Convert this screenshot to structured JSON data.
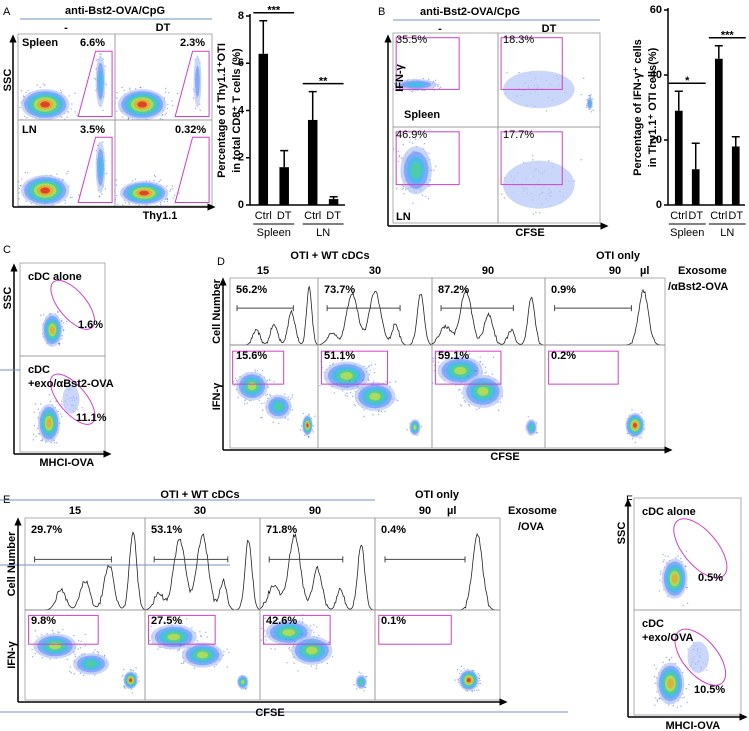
{
  "chart_data": [
    {
      "type": "bar",
      "ylabel": [
        "Percentage of Thy1.1⁺OTI",
        "in total CD8⁺ T cells (%)"
      ],
      "categories": [
        "Ctrl",
        "DT",
        "Ctrl",
        "DT"
      ],
      "groups": [
        "Spleen",
        "LN"
      ],
      "values": [
        6.4,
        1.6,
        3.6,
        0.25
      ],
      "errors": [
        1.4,
        0.7,
        1.2,
        0.1
      ],
      "color": "#000000",
      "ylim": [
        0,
        8
      ],
      "yticks": [
        0,
        2,
        4,
        6,
        8
      ],
      "significance": [
        "***",
        "**"
      ]
    },
    {
      "type": "bar",
      "ylabel": [
        "Percentage of IFN-γ⁺ cells",
        "in Thy1.1⁺ OTI cells(%)"
      ],
      "categories": [
        "Ctrl",
        "DT",
        "Ctrl",
        "DT"
      ],
      "groups": [
        "Spleen",
        "LN"
      ],
      "values": [
        29,
        11,
        45,
        18
      ],
      "errors": [
        6,
        8,
        4,
        3
      ],
      "color": "#000000",
      "ylim": [
        0,
        60
      ],
      "yticks": [
        0,
        20,
        40,
        60
      ],
      "significance": [
        "*",
        "***"
      ]
    }
  ],
  "panels": {
    "A": {
      "letter": "A",
      "title": "anti-Bst2-OVA/CpG",
      "columns": [
        "-",
        "DT"
      ],
      "rows": [
        "Spleen",
        "LN"
      ],
      "y_axis": "SSC",
      "x_axis": "Thy1.1",
      "gates": [
        "6.6%",
        "2.3%",
        "3.5%",
        "0.32%"
      ]
    },
    "B": {
      "letter": "B",
      "title": "anti-Bst2-OVA/CpG",
      "columns": [
        "-",
        "DT"
      ],
      "rows": [
        "Spleen",
        "LN"
      ],
      "y_axis": "IFN-γ",
      "x_axis": "CFSE",
      "gates": [
        "35.5%",
        "18.3%",
        "46.9%",
        "17.7%"
      ]
    },
    "C": {
      "letter": "C",
      "rows": [
        [
          "cDC alone"
        ],
        [
          "cDC",
          "+exo/αBst2-OVA"
        ]
      ],
      "y_axis": "SSC",
      "x_axis": "MHCI-OVA",
      "gates": [
        "1.6%",
        "11.1%"
      ]
    },
    "D": {
      "letter": "D",
      "group": "OTI + WT cDCs",
      "group2": "OTI only",
      "doses": [
        "15",
        "30",
        "90",
        "90"
      ],
      "unit": "µl",
      "exosome": [
        "Exosome",
        "/αBst2-OVA"
      ],
      "hist_axis": "Cell Number",
      "y_axis": "IFN-γ",
      "x_axis": "CFSE",
      "hist_gates": [
        "56.2%",
        "73.7%",
        "87.2%",
        "0.9%"
      ],
      "gates": [
        "15.6%",
        "51.1%",
        "59.1%",
        "0.2%"
      ]
    },
    "E": {
      "letter": "E",
      "group": "OTI + WT cDCs",
      "group2": "OTI only",
      "doses": [
        "15",
        "30",
        "90",
        "90"
      ],
      "unit": "µl",
      "exosome": [
        "Exosome",
        "/OVA"
      ],
      "hist_axis": "Cell Number",
      "y_axis": "IFN-γ",
      "x_axis": "CFSE",
      "hist_gates": [
        "29.7%",
        "53.1%",
        "71.8%",
        "0.4%"
      ],
      "gates": [
        "9.8%",
        "27.5%",
        "42.6%",
        "0.1%"
      ]
    },
    "F": {
      "letter": "F",
      "rows": [
        [
          "cDC alone"
        ],
        [
          "cDC",
          "+exo/OVA"
        ]
      ],
      "y_axis": "SSC",
      "x_axis": "MHCI-OVA",
      "gates": [
        "0.5%",
        "10.5%"
      ]
    }
  }
}
